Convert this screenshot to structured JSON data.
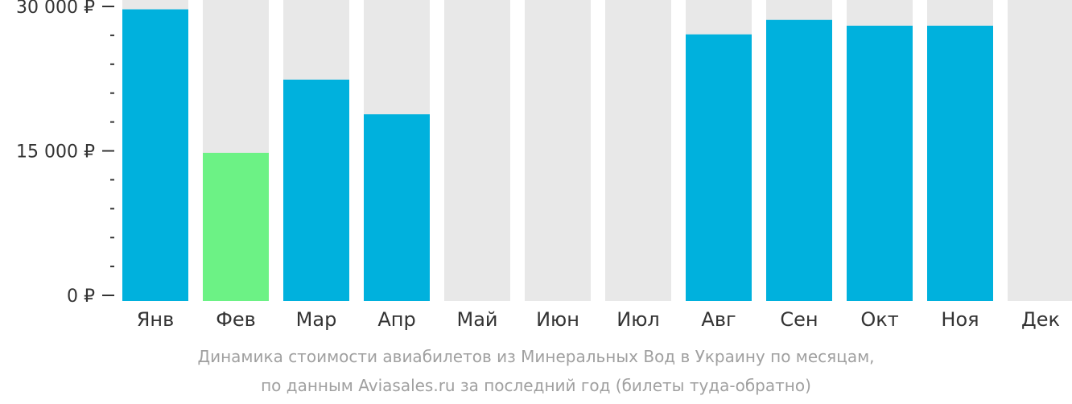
{
  "chart_data": {
    "type": "bar",
    "categories": [
      "Янв",
      "Фев",
      "Мар",
      "Апр",
      "Май",
      "Июн",
      "Июл",
      "Авг",
      "Сен",
      "Окт",
      "Ноя",
      "Дек"
    ],
    "values": [
      29700,
      14800,
      22400,
      18800,
      null,
      null,
      null,
      27100,
      28600,
      28000,
      28000,
      null
    ],
    "highlight_index": 1,
    "ylim": [
      0,
      30000
    ],
    "ytick_labels": [
      {
        "value": 30000,
        "label": "30 000 ₽"
      },
      {
        "value": 15000,
        "label": "15 000 ₽"
      },
      {
        "value": 0,
        "label": "0 ₽"
      }
    ],
    "minor_tick_step": 3000,
    "colors": {
      "bar": "#00b1dd",
      "highlight": "#6cf285",
      "background_bar": "#e8e8e8",
      "axis": "#333333"
    },
    "xlabel": "",
    "ylabel": ""
  },
  "caption": {
    "line1": "Динамика стоимости авиабилетов из Минеральных Вод в Украину по месяцам,",
    "line2": "по данным Aviasales.ru за последний год (билеты туда-обратно)"
  }
}
